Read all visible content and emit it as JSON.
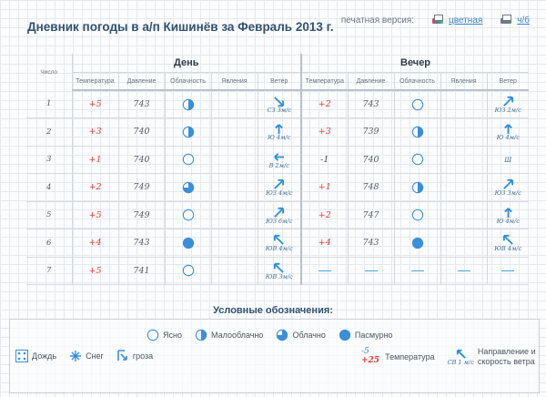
{
  "header": {
    "title": "Дневник погоды в а/п Кишинёв за Февраль 2013 г.",
    "print_label": "печатная версия:",
    "print_color": "цветная",
    "print_bw": "ч/б"
  },
  "table": {
    "day_label": "Число",
    "group_day": "День",
    "group_evening": "Вечер",
    "columns": [
      "Температура",
      "Давление",
      "Облачность",
      "Явления",
      "Ветер"
    ],
    "rows": [
      {
        "n": "1",
        "day": {
          "t": "+5",
          "p": "743",
          "c": "partly",
          "w": {
            "dir": "СЗ",
            "spd": "3м/с",
            "arrow": "se"
          }
        },
        "eve": {
          "t": "+2",
          "p": "743",
          "c": "clear",
          "w": {
            "dir": "ЮЗ",
            "spd": "2м/с",
            "arrow": "ne"
          }
        }
      },
      {
        "n": "2",
        "day": {
          "t": "+3",
          "p": "740",
          "c": "partly",
          "w": {
            "dir": "Ю",
            "spd": "4м/с",
            "arrow": "n"
          }
        },
        "eve": {
          "t": "+3",
          "p": "739",
          "c": "partly",
          "w": {
            "dir": "Ю",
            "spd": "4м/с",
            "arrow": "n"
          }
        }
      },
      {
        "n": "3",
        "day": {
          "t": "+1",
          "p": "740",
          "c": "clear",
          "w": {
            "dir": "В",
            "spd": "2м/с",
            "arrow": "w"
          }
        },
        "eve": {
          "t": "-1",
          "p": "740",
          "c": "clear",
          "w": {
            "dir": "Ш",
            "spd": "",
            "arrow": "none"
          }
        }
      },
      {
        "n": "4",
        "day": {
          "t": "+2",
          "p": "749",
          "c": "cloudy",
          "w": {
            "dir": "ЮЗ",
            "spd": "4м/с",
            "arrow": "ne"
          }
        },
        "eve": {
          "t": "+1",
          "p": "748",
          "c": "partly",
          "w": {
            "dir": "ЮЗ",
            "spd": "3м/с",
            "arrow": "ne"
          }
        }
      },
      {
        "n": "5",
        "day": {
          "t": "+5",
          "p": "749",
          "c": "clear",
          "w": {
            "dir": "ЮЗ",
            "spd": "6м/с",
            "arrow": "ne"
          }
        },
        "eve": {
          "t": "+2",
          "p": "747",
          "c": "clear",
          "w": {
            "dir": "Ю",
            "spd": "4м/с",
            "arrow": "n"
          }
        }
      },
      {
        "n": "6",
        "day": {
          "t": "+4",
          "p": "743",
          "c": "overcast",
          "w": {
            "dir": "ЮВ",
            "spd": "4м/с",
            "arrow": "nw"
          }
        },
        "eve": {
          "t": "+4",
          "p": "743",
          "c": "overcast",
          "w": {
            "dir": "ЮВ",
            "spd": "4м/с",
            "arrow": "nw"
          }
        }
      },
      {
        "n": "7",
        "day": {
          "t": "+5",
          "p": "741",
          "c": "clear",
          "w": {
            "dir": "ЮВ",
            "spd": "3м/с",
            "arrow": "nw"
          }
        },
        "eve": {
          "t": "—",
          "p": "—",
          "c": "—",
          "x": "—",
          "w": {
            "dir": "—",
            "spd": "",
            "arrow": "dash"
          }
        }
      }
    ]
  },
  "legend": {
    "title": "Условные обозначения:",
    "clouds": [
      {
        "key": "clear",
        "label": "Ясно"
      },
      {
        "key": "partly",
        "label": "Малооблачно"
      },
      {
        "key": "cloudy",
        "label": "Облачно"
      },
      {
        "key": "overcast",
        "label": "Пасмурно"
      }
    ],
    "phenomena": [
      {
        "key": "rain",
        "label": "Дождь"
      },
      {
        "key": "snow",
        "label": "Снег"
      },
      {
        "key": "storm",
        "label": "гроза"
      }
    ],
    "temp_example_neg": "-5",
    "temp_example_pos": "+25",
    "temp_label": "Температура",
    "wind_example": "СВ 1 м/с",
    "wind_label_1": "Направление и",
    "wind_label_2": "скорость ветра"
  },
  "colors": {
    "accent": "#3a83c6",
    "temp_pos": "#e53935",
    "title": "#33526f"
  }
}
